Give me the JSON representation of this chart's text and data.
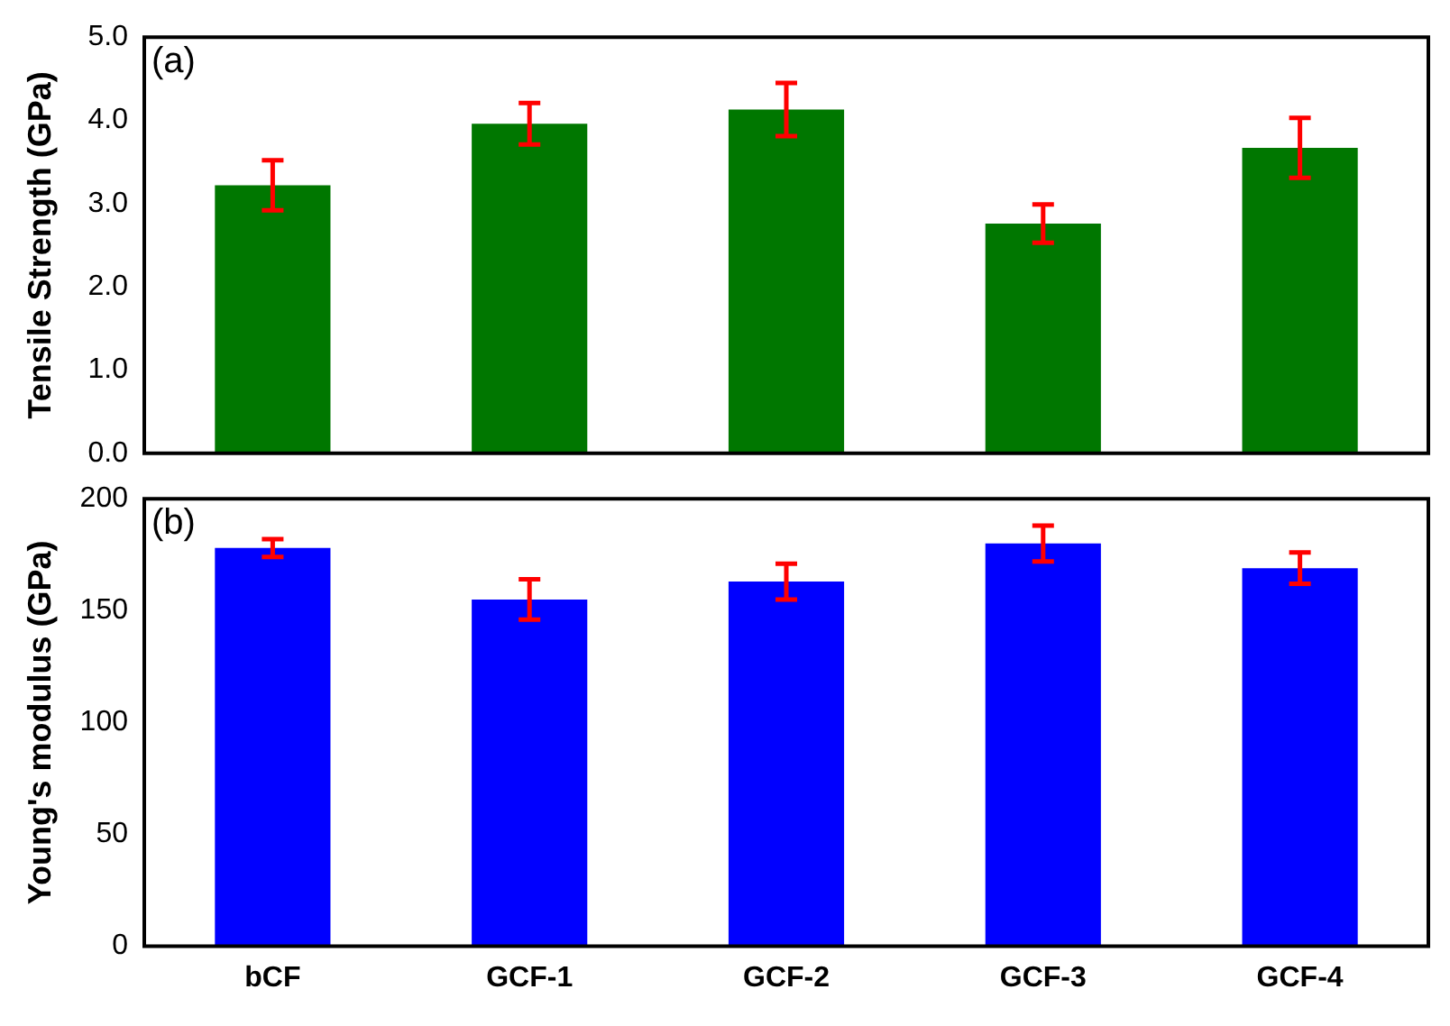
{
  "chart_data": [
    {
      "type": "bar",
      "ylabel": "Tensile Strength (GPa)",
      "categories": [
        null,
        null,
        null,
        null,
        null
      ],
      "values": [
        3.22,
        3.96,
        4.13,
        2.76,
        3.67
      ],
      "errors": [
        0.3,
        0.25,
        0.32,
        0.23,
        0.36
      ],
      "color": "#007700",
      "ylim": [
        0,
        5
      ],
      "yticks": [
        {
          "value": 0,
          "label": "0.0"
        },
        {
          "value": 1,
          "label": "1.0"
        },
        {
          "value": 2,
          "label": "2.0"
        },
        {
          "value": 3,
          "label": "3.0"
        },
        {
          "value": 4,
          "label": "4.0"
        },
        {
          "value": 5,
          "label": "5.0"
        }
      ],
      "grid": false,
      "legend": false,
      "tick_labels": "y",
      "annotations": [
        "(a)"
      ]
    },
    {
      "type": "bar",
      "ylabel": "Young's modulus (GPa)",
      "categories": [
        "bCF",
        "GCF-1",
        "GCF-2",
        "GCF-3",
        "GCF-4"
      ],
      "values": [
        178,
        155,
        163,
        180,
        169
      ],
      "errors": [
        4,
        9,
        8,
        8,
        7
      ],
      "color": "#0000ff",
      "ylim": [
        0,
        200
      ],
      "yticks": [
        0,
        50,
        100,
        150,
        200
      ],
      "grid": false,
      "legend": false,
      "annotations": [
        "(b)"
      ]
    }
  ]
}
